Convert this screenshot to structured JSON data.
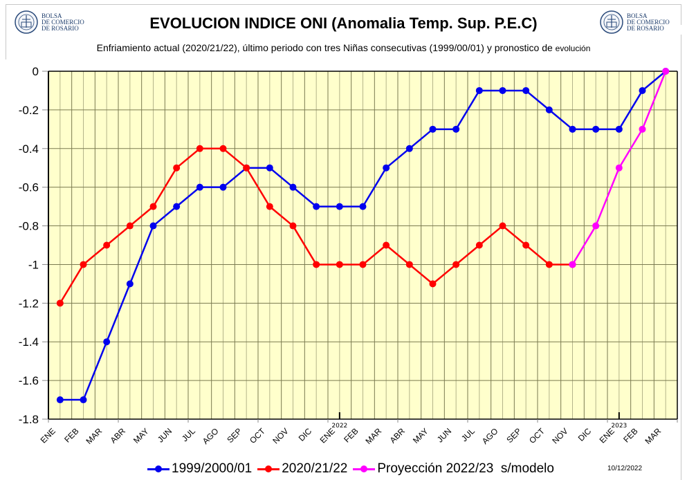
{
  "header": {
    "logo_left": {
      "line1": "BOLSA",
      "line2": "DE COMERCIO",
      "line3": "DE ROSARIO"
    },
    "logo_right": {
      "line1": "BOLSA",
      "line2": "DE COMERCIO",
      "line3": "DE ROSARIO"
    },
    "title": "EVOLUCION INDICE ONI (Anomalia Temp. Sup. P.E.C)",
    "subtitle_main": "Enfriamiento actual (2020/21/22),  último periodo con tres Niñas consecutivas (1999/00/01) y pronostico de ",
    "subtitle_small": "evolución"
  },
  "footer": {
    "date_stamp": "10/12/2022"
  },
  "colors": {
    "plot_bg": "#ffffcc",
    "series_1999": "#0000ee",
    "series_2020": "#ff0000",
    "series_proj": "#ff00ff",
    "grid": "#8a8a5a"
  },
  "chart_data": {
    "type": "line",
    "title": "EVOLUCION INDICE ONI (Anomalia Temp. Sup. P.E.C)",
    "subtitle": "Enfriamiento actual (2020/21/22),  último periodo con tres Niñas consecutivas (1999/00/01) y pronostico de evolución",
    "xlabel": "",
    "ylabel": "",
    "categories": [
      "ENE",
      "FEB",
      "MAR",
      "ABR",
      "MAY",
      "JUN",
      "JUL",
      "AGO",
      "SEP",
      "OCT",
      "NOV",
      "DIC",
      "ENE",
      "FEB",
      "MAR",
      "ABR",
      "MAY",
      "JUN",
      "JUL",
      "AGO",
      "SEP",
      "OCT",
      "NOV",
      "DIC",
      "ENE",
      "FEB",
      "MAR"
    ],
    "year_markers": [
      {
        "index": 12,
        "label": "2022"
      },
      {
        "index": 24,
        "label": "2023"
      }
    ],
    "ylim": [
      -1.8,
      0
    ],
    "yticks": [
      0,
      -0.2,
      -0.4,
      -0.6,
      -0.8,
      -1,
      -1.2,
      -1.4,
      -1.6,
      -1.8
    ],
    "ytick_labels": [
      "0",
      "-0.2",
      "-0.4",
      "-0.6",
      "-0.8",
      "-1",
      "-1.2",
      "-1.4",
      "-1.6",
      "-1.8"
    ],
    "grid": true,
    "legend_position": "bottom",
    "series": [
      {
        "name": "1999/2000/01",
        "key": "series_1999",
        "start_index": 0,
        "values": [
          -1.7,
          -1.7,
          -1.4,
          -1.1,
          -0.8,
          -0.7,
          -0.6,
          -0.6,
          -0.5,
          -0.5,
          -0.6,
          -0.7,
          -0.7,
          -0.7,
          -0.5,
          -0.4,
          -0.3,
          -0.3,
          -0.1,
          -0.1,
          -0.1,
          -0.2,
          -0.3,
          -0.3,
          -0.3,
          -0.1,
          0.0
        ]
      },
      {
        "name": "2020/21/22",
        "key": "series_2020",
        "start_index": 0,
        "values": [
          -1.2,
          -1.0,
          -0.9,
          -0.8,
          -0.7,
          -0.5,
          -0.4,
          -0.4,
          -0.5,
          -0.7,
          -0.8,
          -1.0,
          -1.0,
          -1.0,
          -0.9,
          -1.0,
          -1.1,
          -1.0,
          -0.9,
          -0.8,
          -0.9,
          -1.0,
          -1.0
        ]
      },
      {
        "name": "Proyección 2022/23  s/modelo",
        "key": "series_proj",
        "start_index": 22,
        "values": [
          -1.0,
          -0.8,
          -0.5,
          -0.3,
          0.0
        ]
      }
    ]
  }
}
